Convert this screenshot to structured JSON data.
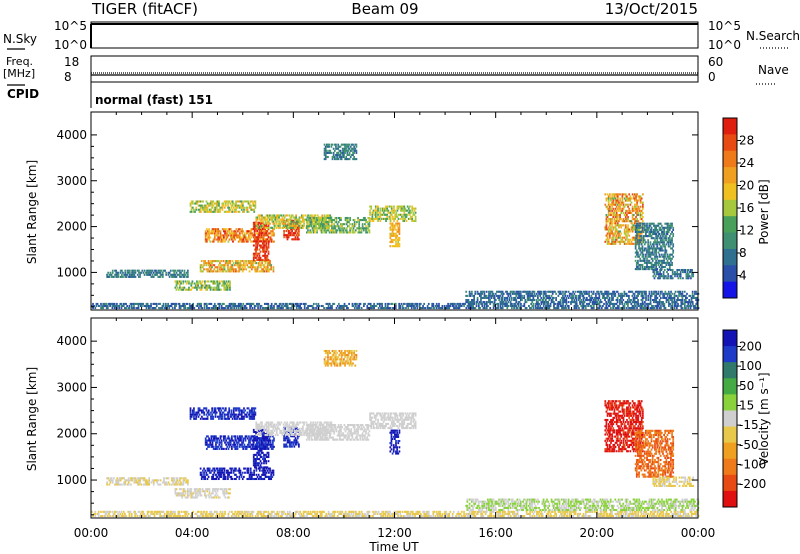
{
  "header": {
    "radar": "TIGER (fitACF)",
    "beam": "Beam 09",
    "date": "13/Oct/2015"
  },
  "top_panels": {
    "nsky_label": "N.Sky",
    "nsky_ticks": [
      "10^5",
      "10^0"
    ],
    "nsearch_label": "N.Search",
    "nsearch_ticks": [
      "10^5",
      "10^0"
    ],
    "freq_label": "Freq.",
    "freq_unit": "[MHz]",
    "freq_ticks": [
      "18",
      "8"
    ],
    "nave_label": "Nave",
    "nave_ticks": [
      "60",
      "0"
    ],
    "cpid_label": "CPID",
    "cpid_value": "normal (fast) 151"
  },
  "x_axis": {
    "label": "Time UT",
    "ticks": [
      "00:00",
      "04:00",
      "08:00",
      "12:00",
      "16:00",
      "20:00",
      "00:00"
    ]
  },
  "y_axis": {
    "label": "Slant Range [km]",
    "ticks": [
      "1000",
      "2000",
      "3000",
      "4000"
    ]
  },
  "power_colorbar": {
    "label": "Power [dB]",
    "ticks": [
      "28",
      "24",
      "20",
      "16",
      "12",
      "8",
      "4"
    ],
    "colors": [
      "#1414e6",
      "#2a4fa8",
      "#2f6f8f",
      "#3f8f73",
      "#48a05a",
      "#a6c83c",
      "#f0c020",
      "#f0a020",
      "#ef7a1a",
      "#e84a14",
      "#e01e10"
    ]
  },
  "velocity_colorbar": {
    "label": "Velocity [m s⁻¹]",
    "ticks": [
      "200",
      "100",
      "50",
      "15",
      "-15",
      "-50",
      "-100",
      "-200"
    ],
    "colors": [
      "#1414b4",
      "#1e3cc8",
      "#2f7a6a",
      "#44aa44",
      "#8ad23c",
      "#cfcfcf",
      "#e8c84a",
      "#f0a020",
      "#ef7a1a",
      "#e84a14",
      "#e01010"
    ]
  },
  "chart_data": [
    {
      "type": "heatmap",
      "title": "Power [dB]",
      "xlabel": "Time UT",
      "ylabel": "Slant Range [km]",
      "x_range_hours": [
        0,
        24
      ],
      "ylim": [
        180,
        4500
      ],
      "clim": [
        0,
        30
      ],
      "features": [
        {
          "t0": 0.0,
          "t1": 24.0,
          "r0": 200,
          "r1": 330,
          "value": 6,
          "spread": 3
        },
        {
          "t0": 0.6,
          "t1": 3.8,
          "r0": 880,
          "r1": 1020,
          "value": 8,
          "spread": 3
        },
        {
          "t0": 3.3,
          "t1": 5.5,
          "r0": 600,
          "r1": 800,
          "value": 14,
          "spread": 4
        },
        {
          "t0": 4.3,
          "t1": 7.2,
          "r0": 1000,
          "r1": 1250,
          "value": 19,
          "spread": 6
        },
        {
          "t0": 3.9,
          "t1": 6.5,
          "r0": 2300,
          "r1": 2550,
          "value": 16,
          "spread": 4
        },
        {
          "t0": 4.5,
          "t1": 7.2,
          "r0": 1650,
          "r1": 1950,
          "value": 22,
          "spread": 6
        },
        {
          "t0": 6.4,
          "t1": 7.0,
          "r0": 1250,
          "r1": 2100,
          "value": 27,
          "spread": 3
        },
        {
          "t0": 7.6,
          "t1": 8.2,
          "r0": 1700,
          "r1": 2150,
          "value": 27,
          "spread": 3
        },
        {
          "t0": 6.5,
          "t1": 9.5,
          "r0": 1950,
          "r1": 2250,
          "value": 16,
          "spread": 4
        },
        {
          "t0": 8.5,
          "t1": 11.0,
          "r0": 1850,
          "r1": 2200,
          "value": 13,
          "spread": 4
        },
        {
          "t0": 11.0,
          "t1": 12.8,
          "r0": 2100,
          "r1": 2450,
          "value": 15,
          "spread": 4
        },
        {
          "t0": 11.8,
          "t1": 12.2,
          "r0": 1550,
          "r1": 2050,
          "value": 19,
          "spread": 3
        },
        {
          "t0": 9.2,
          "t1": 10.5,
          "r0": 3450,
          "r1": 3800,
          "value": 8,
          "spread": 3
        },
        {
          "t0": 14.8,
          "t1": 24.0,
          "r0": 330,
          "r1": 600,
          "value": 6,
          "spread": 3
        },
        {
          "t0": 20.3,
          "t1": 21.8,
          "r0": 1600,
          "r1": 2700,
          "value": 20,
          "spread": 7
        },
        {
          "t0": 21.5,
          "t1": 23.0,
          "r0": 1050,
          "r1": 2050,
          "value": 8,
          "spread": 3
        },
        {
          "t0": 22.2,
          "t1": 23.8,
          "r0": 850,
          "r1": 1050,
          "value": 7,
          "spread": 3
        }
      ]
    },
    {
      "type": "heatmap",
      "title": "Velocity [m s⁻¹]",
      "xlabel": "Time UT",
      "ylabel": "Slant Range [km]",
      "x_range_hours": [
        0,
        24
      ],
      "ylim": [
        180,
        4500
      ],
      "clim": [
        -250,
        250
      ],
      "features": [
        {
          "t0": 0.0,
          "t1": 24.0,
          "r0": 200,
          "r1": 330,
          "value": -30,
          "spread": 20
        },
        {
          "t0": 0.6,
          "t1": 3.8,
          "r0": 880,
          "r1": 1020,
          "value": -20,
          "spread": 15
        },
        {
          "t0": 3.3,
          "t1": 5.5,
          "r0": 600,
          "r1": 800,
          "value": -15,
          "spread": 15
        },
        {
          "t0": 4.3,
          "t1": 7.2,
          "r0": 1000,
          "r1": 1250,
          "value": 220,
          "spread": 30
        },
        {
          "t0": 3.9,
          "t1": 6.5,
          "r0": 2300,
          "r1": 2550,
          "value": 200,
          "spread": 40
        },
        {
          "t0": 4.5,
          "t1": 7.2,
          "r0": 1650,
          "r1": 1950,
          "value": 200,
          "spread": 40
        },
        {
          "t0": 6.4,
          "t1": 7.0,
          "r0": 1250,
          "r1": 2100,
          "value": 220,
          "spread": 30
        },
        {
          "t0": 7.6,
          "t1": 8.2,
          "r0": 1700,
          "r1": 2150,
          "value": 200,
          "spread": 30
        },
        {
          "t0": 6.5,
          "t1": 9.5,
          "r0": 1950,
          "r1": 2250,
          "value": 0,
          "spread": 10
        },
        {
          "t0": 8.5,
          "t1": 11.0,
          "r0": 1850,
          "r1": 2200,
          "value": 0,
          "spread": 10
        },
        {
          "t0": 11.0,
          "t1": 12.8,
          "r0": 2100,
          "r1": 2450,
          "value": 5,
          "spread": 10
        },
        {
          "t0": 11.8,
          "t1": 12.2,
          "r0": 1550,
          "r1": 2050,
          "value": 220,
          "spread": 30
        },
        {
          "t0": 9.2,
          "t1": 10.5,
          "r0": 3450,
          "r1": 3800,
          "value": -80,
          "spread": 40
        },
        {
          "t0": 14.8,
          "t1": 24.0,
          "r0": 330,
          "r1": 600,
          "value": 25,
          "spread": 20
        },
        {
          "t0": 20.3,
          "t1": 21.8,
          "r0": 1600,
          "r1": 2700,
          "value": -220,
          "spread": 30
        },
        {
          "t0": 21.5,
          "t1": 23.0,
          "r0": 1050,
          "r1": 2050,
          "value": -150,
          "spread": 40
        },
        {
          "t0": 22.2,
          "t1": 23.8,
          "r0": 850,
          "r1": 1050,
          "value": -30,
          "spread": 20
        }
      ]
    }
  ]
}
